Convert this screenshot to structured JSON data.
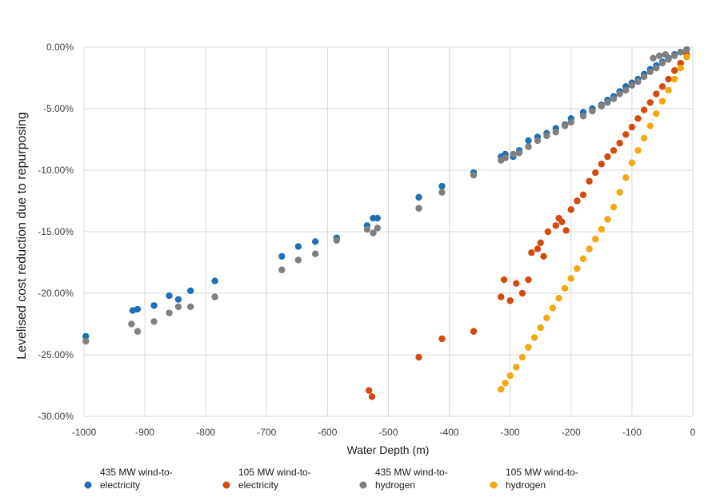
{
  "chart_data": {
    "type": "scatter",
    "xlabel": "Water Depth (m)",
    "ylabel": "Levelised cost reduction due to repurposing",
    "xlim": [
      -1000,
      0
    ],
    "ylim": [
      -30,
      0
    ],
    "x_ticks": [
      -1000,
      -900,
      -800,
      -700,
      -600,
      -500,
      -400,
      -300,
      -200,
      -100,
      0
    ],
    "x_tick_labels": [
      "-1000",
      "-900",
      "-800",
      "-700",
      "-600",
      "-500",
      "-400",
      "-300",
      "-200",
      "-100",
      "0"
    ],
    "y_ticks": [
      0,
      -5,
      -10,
      -15,
      -20,
      -25,
      -30
    ],
    "y_tick_labels": [
      "0.00%",
      "-5.00%",
      "-10.00%",
      "-15.00%",
      "-20.00%",
      "-25.00%",
      "-30.00%"
    ],
    "grid": true,
    "legend_position": "bottom",
    "series": [
      {
        "name": "435 MW wind-to-electricity",
        "legend_lines": [
          "435 MW wind-to-",
          "electricity"
        ],
        "color": "#1f6fb5",
        "points": [
          [
            -997,
            -23.5
          ],
          [
            -920,
            -21.4
          ],
          [
            -912,
            -21.3
          ],
          [
            -885,
            -21.0
          ],
          [
            -860,
            -20.2
          ],
          [
            -845,
            -20.5
          ],
          [
            -825,
            -19.8
          ],
          [
            -785,
            -19.0
          ],
          [
            -675,
            -17.0
          ],
          [
            -648,
            -16.2
          ],
          [
            -620,
            -15.8
          ],
          [
            -585,
            -15.5
          ],
          [
            -535,
            -14.5
          ],
          [
            -525,
            -13.9
          ],
          [
            -518,
            -13.9
          ],
          [
            -450,
            -12.2
          ],
          [
            -412,
            -11.3
          ],
          [
            -360,
            -10.2
          ],
          [
            -315,
            -8.9
          ],
          [
            -308,
            -8.7
          ],
          [
            -295,
            -8.9
          ],
          [
            -285,
            -8.4
          ],
          [
            -270,
            -7.6
          ],
          [
            -255,
            -7.3
          ],
          [
            -240,
            -7.0
          ],
          [
            -225,
            -6.6
          ],
          [
            -210,
            -6.3
          ],
          [
            -200,
            -5.8
          ],
          [
            -180,
            -5.3
          ],
          [
            -165,
            -5.0
          ],
          [
            -150,
            -4.7
          ],
          [
            -140,
            -4.3
          ],
          [
            -130,
            -4.0
          ],
          [
            -120,
            -3.6
          ],
          [
            -110,
            -3.2
          ],
          [
            -100,
            -2.9
          ],
          [
            -90,
            -2.6
          ],
          [
            -80,
            -2.2
          ],
          [
            -70,
            -1.8
          ],
          [
            -60,
            -1.5
          ],
          [
            -50,
            -1.2
          ],
          [
            -40,
            -0.9
          ],
          [
            -30,
            -0.6
          ],
          [
            -20,
            -0.4
          ],
          [
            -10,
            -0.2
          ]
        ]
      },
      {
        "name": "105 MW wind-to-electricity",
        "legend_lines": [
          "105 MW wind-to-",
          "electricity"
        ],
        "color": "#d24a0e",
        "points": [
          [
            -532,
            -27.9
          ],
          [
            -527,
            -28.4
          ],
          [
            -450,
            -25.2
          ],
          [
            -412,
            -23.7
          ],
          [
            -360,
            -23.1
          ],
          [
            -315,
            -20.3
          ],
          [
            -310,
            -18.9
          ],
          [
            -300,
            -20.6
          ],
          [
            -290,
            -19.2
          ],
          [
            -280,
            -20.0
          ],
          [
            -270,
            -18.9
          ],
          [
            -265,
            -16.7
          ],
          [
            -255,
            -16.4
          ],
          [
            -250,
            -15.9
          ],
          [
            -245,
            -17.0
          ],
          [
            -238,
            -15.0
          ],
          [
            -225,
            -14.5
          ],
          [
            -220,
            -13.9
          ],
          [
            -215,
            -14.2
          ],
          [
            -208,
            -14.9
          ],
          [
            -200,
            -13.2
          ],
          [
            -190,
            -12.5
          ],
          [
            -180,
            -12.0
          ],
          [
            -170,
            -10.9
          ],
          [
            -160,
            -10.2
          ],
          [
            -150,
            -9.5
          ],
          [
            -140,
            -8.9
          ],
          [
            -130,
            -8.4
          ],
          [
            -120,
            -7.8
          ],
          [
            -110,
            -7.1
          ],
          [
            -100,
            -6.5
          ],
          [
            -90,
            -5.8
          ],
          [
            -80,
            -5.1
          ],
          [
            -70,
            -4.5
          ],
          [
            -60,
            -3.8
          ],
          [
            -50,
            -3.2
          ],
          [
            -40,
            -2.6
          ],
          [
            -30,
            -1.9
          ],
          [
            -20,
            -1.3
          ],
          [
            -10,
            -0.6
          ]
        ]
      },
      {
        "name": "435 MW wind-to-hydrogen",
        "legend_lines": [
          "435 MW wind-to-",
          "hydrogen"
        ],
        "color": "#7f7f7f",
        "points": [
          [
            -997,
            -23.9
          ],
          [
            -922,
            -22.5
          ],
          [
            -912,
            -23.1
          ],
          [
            -885,
            -22.3
          ],
          [
            -860,
            -21.6
          ],
          [
            -845,
            -21.1
          ],
          [
            -825,
            -21.1
          ],
          [
            -785,
            -20.3
          ],
          [
            -675,
            -18.1
          ],
          [
            -648,
            -17.3
          ],
          [
            -620,
            -16.8
          ],
          [
            -585,
            -15.7
          ],
          [
            -535,
            -14.8
          ],
          [
            -525,
            -15.1
          ],
          [
            -518,
            -14.7
          ],
          [
            -450,
            -13.1
          ],
          [
            -412,
            -11.8
          ],
          [
            -360,
            -10.4
          ],
          [
            -315,
            -9.2
          ],
          [
            -308,
            -9.0
          ],
          [
            -295,
            -8.7
          ],
          [
            -285,
            -8.6
          ],
          [
            -270,
            -8.1
          ],
          [
            -255,
            -7.6
          ],
          [
            -240,
            -7.2
          ],
          [
            -225,
            -6.9
          ],
          [
            -210,
            -6.4
          ],
          [
            -200,
            -6.1
          ],
          [
            -180,
            -5.6
          ],
          [
            -165,
            -5.2
          ],
          [
            -150,
            -4.8
          ],
          [
            -140,
            -4.5
          ],
          [
            -130,
            -4.2
          ],
          [
            -120,
            -3.8
          ],
          [
            -110,
            -3.5
          ],
          [
            -100,
            -3.1
          ],
          [
            -90,
            -2.8
          ],
          [
            -80,
            -2.4
          ],
          [
            -70,
            -2.0
          ],
          [
            -60,
            -1.7
          ],
          [
            -50,
            -1.3
          ],
          [
            -40,
            -1.0
          ],
          [
            -30,
            -0.7
          ],
          [
            -20,
            -0.4
          ],
          [
            -10,
            -0.2
          ],
          [
            -65,
            -0.9
          ],
          [
            -55,
            -0.7
          ],
          [
            -45,
            -0.6
          ]
        ]
      },
      {
        "name": "105 MW wind-to-hydrogen",
        "legend_lines": [
          "105 MW wind-to-",
          "hydrogen"
        ],
        "color": "#f5a70f",
        "points": [
          [
            -315,
            -27.8
          ],
          [
            -308,
            -27.3
          ],
          [
            -300,
            -26.7
          ],
          [
            -290,
            -26.0
          ],
          [
            -280,
            -25.2
          ],
          [
            -270,
            -24.4
          ],
          [
            -260,
            -23.6
          ],
          [
            -250,
            -22.8
          ],
          [
            -240,
            -22.0
          ],
          [
            -230,
            -21.2
          ],
          [
            -220,
            -20.4
          ],
          [
            -210,
            -19.6
          ],
          [
            -200,
            -18.8
          ],
          [
            -190,
            -18.0
          ],
          [
            -180,
            -17.2
          ],
          [
            -170,
            -16.4
          ],
          [
            -160,
            -15.6
          ],
          [
            -150,
            -14.8
          ],
          [
            -140,
            -14.0
          ],
          [
            -130,
            -13.0
          ],
          [
            -120,
            -11.8
          ],
          [
            -110,
            -10.6
          ],
          [
            -100,
            -9.4
          ],
          [
            -90,
            -8.4
          ],
          [
            -80,
            -7.4
          ],
          [
            -70,
            -6.4
          ],
          [
            -60,
            -5.4
          ],
          [
            -50,
            -4.4
          ],
          [
            -40,
            -3.5
          ],
          [
            -30,
            -2.6
          ],
          [
            -20,
            -1.7
          ],
          [
            -10,
            -0.8
          ]
        ]
      }
    ]
  }
}
